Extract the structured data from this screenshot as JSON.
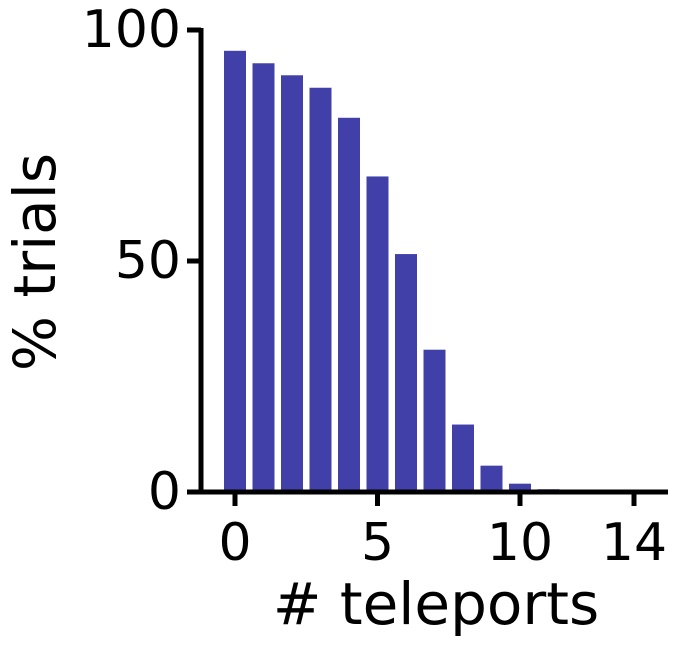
{
  "chart_data": {
    "type": "bar",
    "x": [
      0,
      1,
      2,
      3,
      4,
      5,
      6,
      7,
      8,
      9,
      10,
      11,
      12,
      13,
      14
    ],
    "values": [
      95.5,
      92.8,
      90.2,
      87.5,
      81,
      68.3,
      51.5,
      30.8,
      14.6,
      5.7,
      1.8,
      0.6,
      0.2,
      0.1,
      0.05
    ],
    "xlabel": "# teleports",
    "ylabel": "% trials",
    "xlim": [
      -1,
      15
    ],
    "ylim": [
      0,
      100
    ],
    "xticks": [
      0,
      5,
      10,
      14
    ],
    "yticks": [
      0,
      50,
      100
    ],
    "bar_color": "#4040a8",
    "axis_color": "#000000",
    "grid": false
  }
}
